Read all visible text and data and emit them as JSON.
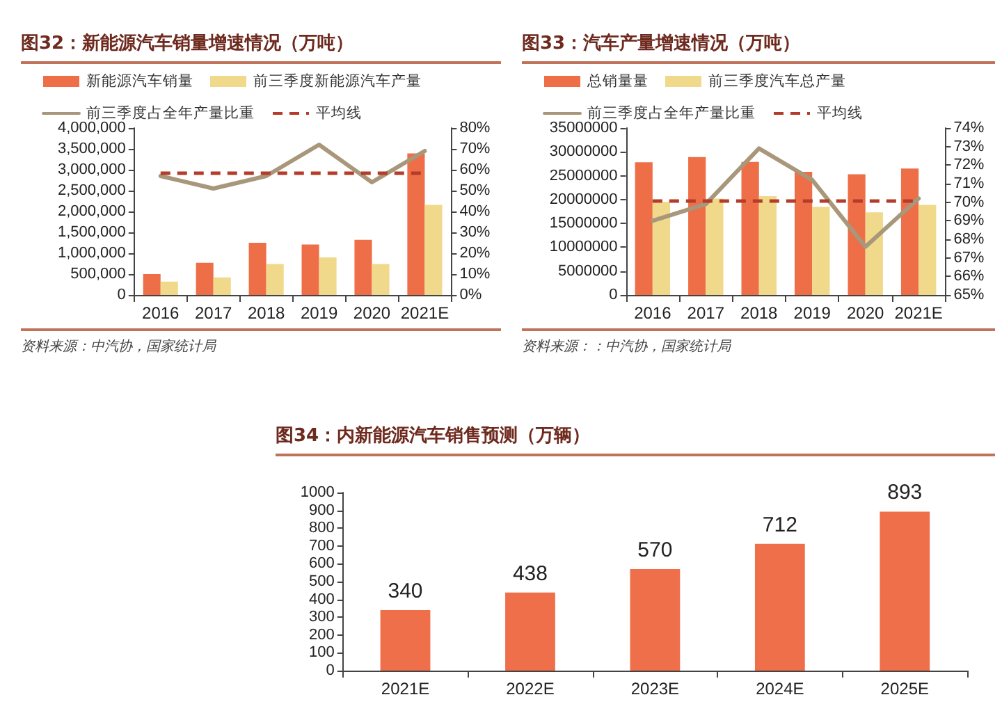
{
  "chart_data": [
    {
      "type": "bar",
      "title": "图32：新能源汽车销量增速情况（万吨）",
      "categories": [
        "2016",
        "2017",
        "2018",
        "2019",
        "2020",
        "2021E"
      ],
      "series": [
        {
          "name": "新能源汽车销量",
          "color": "#ee6e48",
          "values": [
            500000,
            770000,
            1250000,
            1210000,
            1320000,
            3390000
          ]
        },
        {
          "name": "前三季度新能源汽车产量",
          "color": "#f1d98b",
          "values": [
            320000,
            420000,
            740000,
            900000,
            740000,
            2160000
          ]
        },
        {
          "name": "前三季度占全年产量比重",
          "type": "line",
          "axis": "y2",
          "color": "#a8977a",
          "values": [
            57,
            51,
            57,
            72,
            54,
            69
          ]
        }
      ],
      "ylim": [
        0,
        4000000
      ],
      "yticks": [
        0,
        {
          "value": 500000,
          "label": "500,000"
        },
        {
          "value": 1000000,
          "label": "1,000,000"
        },
        {
          "value": 1500000,
          "label": "1,500,000"
        },
        {
          "value": 2000000,
          "label": "2,000,000"
        },
        {
          "value": 2500000,
          "label": "2,500,000"
        },
        {
          "value": 3000000,
          "label": "3,000,000"
        },
        {
          "value": 3500000,
          "label": "3,500,000"
        },
        {
          "value": 4000000,
          "label": "4,000,000"
        }
      ],
      "y2lim": [
        0,
        80
      ],
      "y2ticks": [
        {
          "value": 0,
          "label": "0%"
        },
        {
          "value": 10,
          "label": "10%"
        },
        {
          "value": 20,
          "label": "20%"
        },
        {
          "value": 30,
          "label": "30%"
        },
        {
          "value": 40,
          "label": "40%"
        },
        {
          "value": 50,
          "label": "50%"
        },
        {
          "value": 60,
          "label": "60%"
        },
        {
          "value": 70,
          "label": "70%"
        },
        {
          "value": 80,
          "label": "80%"
        }
      ],
      "ref_lines": [
        {
          "axis": "y2",
          "value": 58.5,
          "label": "平均线",
          "color": "#b43c2a",
          "line_style": "dashed"
        }
      ],
      "legend": "top left",
      "marker": "none",
      "annotations": [
        "资料来源：中汽协，国家统计局"
      ]
    },
    {
      "type": "bar",
      "title": "图33：汽车产量增速情况（万吨）",
      "categories": [
        "2016",
        "2017",
        "2018",
        "2019",
        "2020",
        "2021E"
      ],
      "series": [
        {
          "name": "总销量量",
          "color": "#ee6e48",
          "values": [
            27800000,
            28900000,
            27900000,
            25800000,
            25300000,
            26500000
          ]
        },
        {
          "name": "前三季度汽车总产量",
          "color": "#f1d98b",
          "values": [
            19500000,
            20200000,
            20700000,
            18500000,
            17300000,
            18900000
          ]
        },
        {
          "name": "前三季度占全年产量比重",
          "type": "line",
          "axis": "y2",
          "color": "#a8977a",
          "values": [
            69.0,
            69.9,
            72.9,
            71.2,
            67.6,
            70.2
          ]
        }
      ],
      "ylim": [
        0,
        35000000
      ],
      "yticks": [
        0,
        5000000,
        10000000,
        15000000,
        20000000,
        25000000,
        30000000,
        35000000
      ],
      "y2lim": [
        65,
        74
      ],
      "y2ticks": [
        {
          "value": 65,
          "label": "65%"
        },
        {
          "value": 66,
          "label": "66%"
        },
        {
          "value": 67,
          "label": "67%"
        },
        {
          "value": 68,
          "label": "68%"
        },
        {
          "value": 69,
          "label": "69%"
        },
        {
          "value": 70,
          "label": "70%"
        },
        {
          "value": 71,
          "label": "71%"
        },
        {
          "value": 72,
          "label": "72%"
        },
        {
          "value": 73,
          "label": "73%"
        },
        {
          "value": 74,
          "label": "74%"
        }
      ],
      "ref_lines": [
        {
          "axis": "y2",
          "value": 70.1,
          "label": "平均线",
          "color": "#b43c2a",
          "line_style": "dashed"
        }
      ],
      "legend": "top left",
      "marker": "none",
      "annotations": [
        "资料来源：：中汽协，国家统计局"
      ]
    },
    {
      "type": "bar",
      "title": "图34：内新能源汽车销售预测（万辆）",
      "categories": [
        "2021E",
        "2022E",
        "2023E",
        "2024E",
        "2025E"
      ],
      "values": [
        340,
        438,
        570,
        712,
        893
      ],
      "color": "#ee6f4a",
      "data_labels": true,
      "ylim": [
        0,
        1000
      ],
      "yticks": [
        0,
        100,
        200,
        300,
        400,
        500,
        600,
        700,
        800,
        900,
        1000
      ]
    }
  ]
}
